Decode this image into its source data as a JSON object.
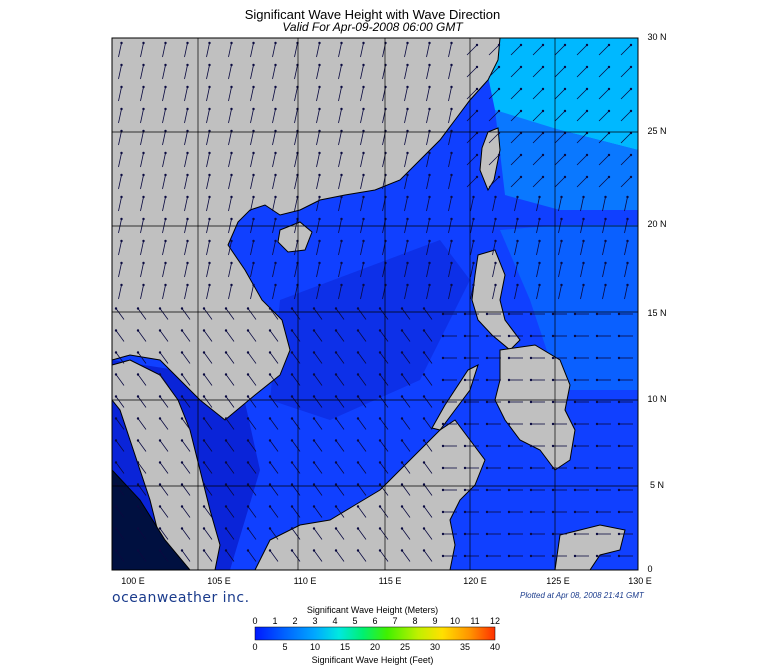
{
  "header": {
    "title": "Significant Wave Height with Wave Direction",
    "subtitle": "Valid For Apr-09-2008 06:00 GMT"
  },
  "map": {
    "lon_range": [
      100,
      130
    ],
    "lat_range": [
      0,
      30
    ],
    "lon_labels": [
      "100 E",
      "105 E",
      "110 E",
      "115 E",
      "120 E",
      "125 E",
      "130 E"
    ],
    "lat_labels": [
      "30 N",
      "25 N",
      "20 N",
      "15 N",
      "10 N",
      "5 N",
      "0"
    ],
    "land_color": "#c0c0c0",
    "ocean_color": "#1040ff"
  },
  "footer": {
    "brand": "oceanweather inc.",
    "plotted": "Plotted at Apr 08, 2008 21:41 GMT"
  },
  "legend": {
    "title_meters": "Significant Wave Height (Meters)",
    "title_feet": "Significant Wave Height (Feet)",
    "meters_ticks": [
      "0",
      "1",
      "2",
      "3",
      "4",
      "5",
      "6",
      "7",
      "8",
      "9",
      "10",
      "11",
      "12"
    ],
    "feet_ticks": [
      "0",
      "5",
      "10",
      "15",
      "20",
      "25",
      "30",
      "35",
      "40"
    ],
    "colors": [
      "#0018ff",
      "#0060ff",
      "#00a8ff",
      "#00e8e0",
      "#00f070",
      "#40f000",
      "#c0f000",
      "#ffe000",
      "#ff9000",
      "#ff3000"
    ]
  }
}
